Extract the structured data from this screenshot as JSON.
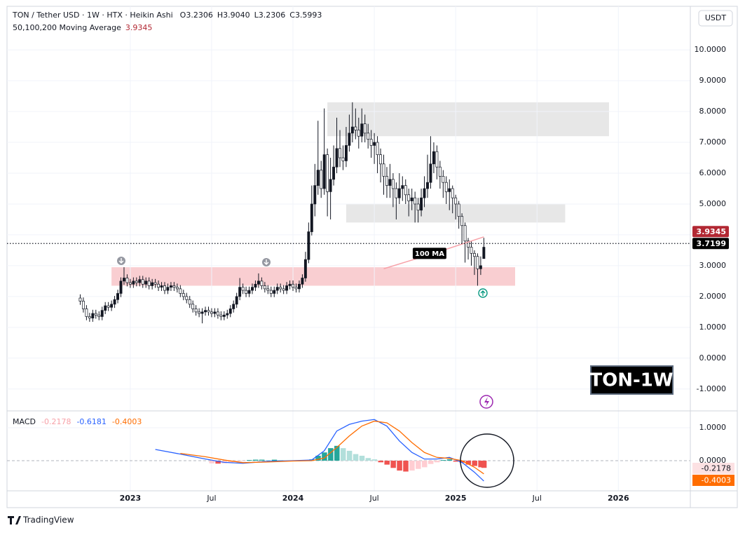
{
  "chart_data": [
    {
      "type": "candlestick",
      "title": "TON / Tether USD · 1W · HTX · Heikin Ashi",
      "ohlc_legend": [
        {
          "key": "O",
          "value": 3.2306
        },
        {
          "key": "H",
          "value": 3.904,
          "label": "3.9040"
        },
        {
          "key": "L",
          "value": 3.2306
        },
        {
          "key": "C",
          "value": 3.5993
        }
      ],
      "axis_unit": "USDT",
      "watermark": "TON-1W",
      "up_color": "#131722",
      "down_color": "#ffffff",
      "grid": true,
      "xlim": [
        -39.4,
        179
      ],
      "xticks": [
        {
          "value": 0,
          "label": "2023"
        },
        {
          "value": 26,
          "label": "Jul"
        },
        {
          "value": 52,
          "label": "2024"
        },
        {
          "value": 78,
          "label": "Jul"
        },
        {
          "value": 104,
          "label": "2025"
        },
        {
          "value": 130,
          "label": "Jul"
        },
        {
          "value": 156,
          "label": "2026"
        }
      ],
      "ylim": [
        -1.71,
        11.39
      ],
      "yticks": [
        {
          "value": 10,
          "label": "10.0000"
        },
        {
          "value": 9,
          "label": "9.0000"
        },
        {
          "value": 8,
          "label": "8.0000"
        },
        {
          "value": 7,
          "label": "7.0000"
        },
        {
          "value": 6,
          "label": "6.0000"
        },
        {
          "value": 5,
          "label": "5.0000"
        },
        {
          "value": 4,
          "label": "4.0000"
        },
        {
          "value": 3,
          "label": "3.0000"
        },
        {
          "value": 2,
          "label": "2.0000"
        },
        {
          "value": 1,
          "label": "1.0000"
        },
        {
          "value": 0,
          "label": "0.0000"
        },
        {
          "value": -1,
          "label": "-1.0000"
        }
      ],
      "x": [
        -16,
        -15,
        -14,
        -13,
        -12,
        -11,
        -10,
        -9,
        -8,
        -7,
        -6,
        -5,
        -4,
        -3,
        -2,
        -1,
        0,
        1,
        2,
        3,
        4,
        5,
        6,
        7,
        8,
        9,
        10,
        11,
        12,
        13,
        14,
        15,
        16,
        17,
        18,
        19,
        20,
        21,
        22,
        23,
        24,
        25,
        26,
        27,
        28,
        29,
        30,
        31,
        32,
        33,
        34,
        35,
        36,
        37,
        38,
        39,
        40,
        41,
        42,
        43,
        44,
        45,
        46,
        47,
        48,
        49,
        50,
        51,
        52,
        53,
        54,
        55,
        56,
        57,
        58,
        59,
        60,
        61,
        62,
        63,
        64,
        65,
        66,
        67,
        68,
        69,
        70,
        71,
        72,
        73,
        74,
        75,
        76,
        77,
        78,
        79,
        80,
        81,
        82,
        83,
        84,
        85,
        86,
        87,
        88,
        89,
        90,
        91,
        92,
        93,
        94,
        95,
        96,
        97,
        98,
        99,
        100,
        101,
        102,
        103,
        104,
        105,
        106,
        107,
        108,
        109,
        110,
        111,
        112,
        113
      ],
      "open": [
        1.95,
        1.85,
        1.6,
        1.35,
        1.3,
        1.45,
        1.4,
        1.35,
        1.55,
        1.7,
        1.65,
        1.75,
        1.9,
        2.1,
        2.5,
        2.6,
        2.45,
        2.4,
        2.5,
        2.45,
        2.55,
        2.4,
        2.5,
        2.35,
        2.45,
        2.4,
        2.3,
        2.35,
        2.2,
        2.3,
        2.35,
        2.3,
        2.25,
        2.1,
        2.0,
        1.9,
        1.75,
        1.6,
        1.5,
        1.45,
        1.5,
        1.55,
        1.5,
        1.45,
        1.5,
        1.4,
        1.35,
        1.4,
        1.45,
        1.6,
        1.75,
        2.0,
        2.3,
        2.2,
        2.1,
        2.2,
        2.3,
        2.4,
        2.5,
        2.35,
        2.25,
        2.2,
        2.1,
        2.2,
        2.3,
        2.25,
        2.2,
        2.35,
        2.4,
        2.3,
        2.25,
        2.4,
        2.6,
        3.2,
        4.1,
        5.0,
        5.6,
        6.1,
        5.5,
        6.6,
        5.4,
        5.8,
        6.2,
        6.8,
        6.5,
        6.4,
        6.9,
        7.3,
        7.5,
        7.4,
        7.2,
        7.6,
        7.3,
        7.1,
        6.9,
        7.0,
        6.6,
        6.3,
        5.9,
        5.6,
        5.8,
        5.5,
        5.2,
        5.5,
        5.6,
        5.3,
        5.1,
        5.2,
        5.0,
        4.8,
        5.2,
        5.5,
        5.7,
        6.3,
        6.7,
        6.2,
        5.9,
        5.7,
        5.4,
        5.5,
        5.2,
        5.0,
        4.6,
        4.3,
        3.8,
        3.6,
        3.4,
        3.3,
        2.9,
        3.2306
      ],
      "high": [
        2.07,
        1.97,
        1.72,
        1.47,
        1.57,
        1.57,
        1.52,
        1.67,
        1.82,
        1.82,
        1.87,
        2.02,
        2.22,
        2.62,
        2.95,
        2.72,
        2.57,
        2.62,
        2.62,
        2.67,
        2.67,
        2.62,
        2.62,
        2.57,
        2.57,
        2.52,
        2.47,
        2.47,
        2.42,
        2.47,
        2.47,
        2.42,
        2.37,
        2.22,
        2.12,
        2.02,
        1.87,
        1.72,
        1.62,
        1.62,
        1.67,
        1.67,
        1.62,
        1.62,
        1.62,
        1.52,
        1.52,
        1.57,
        1.72,
        1.87,
        2.12,
        2.6,
        2.42,
        2.32,
        2.32,
        2.42,
        2.52,
        2.75,
        2.62,
        2.47,
        2.37,
        2.32,
        2.32,
        2.42,
        2.42,
        2.37,
        2.47,
        2.52,
        2.52,
        2.42,
        2.52,
        2.72,
        3.45,
        4.4,
        5.6,
        6.3,
        7.7,
        6.4,
        8.1,
        6.8,
        6.5,
        6.9,
        7.8,
        7.4,
        6.9,
        7.5,
        7.9,
        8.3,
        8.1,
        7.8,
        8.1,
        7.9,
        7.6,
        7.4,
        7.3,
        7.2,
        6.8,
        6.6,
        6.2,
        6.3,
        6.0,
        5.7,
        6.0,
        5.9,
        5.8,
        5.5,
        5.5,
        5.4,
        5.2,
        5.5,
        5.9,
        6.6,
        7.2,
        7.0,
        6.9,
        6.4,
        6.1,
        5.9,
        5.8,
        5.6,
        5.3,
        5.1,
        4.7,
        4.4,
        3.9,
        3.8,
        3.5,
        3.4,
        3.3,
        3.904
      ],
      "low": [
        1.73,
        1.48,
        1.23,
        1.18,
        1.18,
        1.28,
        1.23,
        1.23,
        1.43,
        1.53,
        1.53,
        1.63,
        1.78,
        1.98,
        2.38,
        2.33,
        2.28,
        2.28,
        2.33,
        2.33,
        2.28,
        2.28,
        2.23,
        2.23,
        2.28,
        2.18,
        2.18,
        2.08,
        2.08,
        2.18,
        2.18,
        2.13,
        1.98,
        1.88,
        1.78,
        1.63,
        1.48,
        1.38,
        1.33,
        1.13,
        1.38,
        1.38,
        1.33,
        1.33,
        1.28,
        1.23,
        1.23,
        1.28,
        1.33,
        1.48,
        1.63,
        1.88,
        2.08,
        1.98,
        1.98,
        2.08,
        2.18,
        2.28,
        2.23,
        2.13,
        2.08,
        1.98,
        1.98,
        2.08,
        2.13,
        2.08,
        2.08,
        2.23,
        2.18,
        2.13,
        2.13,
        2.28,
        2.48,
        3.08,
        3.98,
        4.6,
        5.3,
        5.2,
        5.3,
        4.6,
        4.5,
        5.6,
        6.0,
        6.2,
        6.1,
        6.2,
        6.7,
        7.0,
        7.1,
        6.8,
        7.0,
        7.0,
        6.8,
        6.5,
        6.3,
        6.0,
        5.7,
        5.3,
        5.2,
        5.2,
        4.9,
        4.5,
        5.0,
        5.1,
        5.0,
        4.6,
        4.8,
        4.4,
        4.4,
        4.6,
        4.9,
        5.2,
        5.5,
        6.0,
        5.8,
        5.5,
        5.2,
        5.0,
        4.8,
        4.7,
        4.5,
        4.2,
        3.7,
        3.1,
        3.2,
        3.0,
        2.7,
        2.35,
        2.7,
        3.2306
      ],
      "close": [
        1.85,
        1.6,
        1.35,
        1.3,
        1.45,
        1.4,
        1.35,
        1.55,
        1.7,
        1.65,
        1.75,
        1.9,
        2.1,
        2.5,
        2.6,
        2.45,
        2.4,
        2.5,
        2.45,
        2.55,
        2.4,
        2.5,
        2.35,
        2.45,
        2.4,
        2.3,
        2.35,
        2.2,
        2.3,
        2.35,
        2.3,
        2.25,
        2.1,
        2.0,
        1.9,
        1.75,
        1.6,
        1.5,
        1.45,
        1.5,
        1.55,
        1.5,
        1.45,
        1.5,
        1.4,
        1.35,
        1.4,
        1.45,
        1.6,
        1.75,
        2.0,
        2.3,
        2.2,
        2.1,
        2.2,
        2.3,
        2.4,
        2.5,
        2.35,
        2.25,
        2.2,
        2.1,
        2.2,
        2.3,
        2.25,
        2.2,
        2.35,
        2.4,
        2.3,
        2.25,
        2.4,
        2.6,
        3.2,
        4.1,
        5.0,
        5.6,
        6.1,
        5.5,
        6.6,
        5.4,
        5.8,
        6.2,
        6.8,
        6.5,
        6.4,
        6.9,
        7.3,
        7.5,
        7.4,
        7.2,
        7.6,
        7.3,
        7.1,
        6.9,
        7.0,
        6.6,
        6.3,
        5.9,
        5.6,
        5.8,
        5.5,
        5.2,
        5.5,
        5.6,
        5.3,
        5.1,
        5.2,
        5.0,
        4.8,
        5.2,
        5.5,
        5.7,
        6.3,
        6.7,
        6.2,
        5.9,
        5.7,
        5.4,
        5.5,
        5.2,
        5.0,
        4.6,
        4.3,
        3.8,
        3.6,
        3.4,
        3.3,
        2.9,
        3.0,
        3.5993
      ],
      "moving_average": {
        "name": "50,100,200 Moving Average",
        "label": "100 MA",
        "color": "#f7a1a8",
        "x": [
          81,
          97,
          113
        ],
        "values": [
          2.9,
          3.4,
          3.9345
        ]
      },
      "last_price": 3.7199,
      "zones": [
        {
          "x": [
            63,
            153
          ],
          "y": [
            7.2,
            8.3
          ],
          "color": "#e3e3e3"
        },
        {
          "x": [
            69,
            139
          ],
          "y": [
            4.4,
            5.0
          ],
          "color": "#e3e3e3"
        },
        {
          "x": [
            -6,
            123
          ],
          "y": [
            2.35,
            2.95
          ],
          "color": "#f8c5c9"
        }
      ]
    },
    {
      "type": "macd",
      "title": "MACD",
      "grid": true,
      "xlim": [
        -39.4,
        179
      ],
      "ylim": [
        -0.915,
        1.468
      ],
      "yticks": [
        {
          "value": 1,
          "label": "1.0000"
        },
        {
          "value": 0,
          "label": "0.0000"
        }
      ],
      "hist_colors": [
        "#26a69a",
        "#b2dfdb",
        "#ef5350",
        "#ffcdd2"
      ],
      "series": [
        {
          "kind": "histogram",
          "color": "#f7a1a8",
          "x": [
            26,
            28,
            30,
            32,
            34,
            36,
            38,
            40,
            42,
            44,
            46,
            48,
            50,
            52,
            54,
            56,
            58,
            60,
            62,
            64,
            66,
            68,
            70,
            72,
            74,
            76,
            78,
            80,
            82,
            84,
            86,
            88,
            90,
            92,
            94,
            96,
            98,
            100,
            102,
            104,
            106,
            108,
            110,
            112,
            113
          ],
          "values": [
            -0.08,
            -0.09,
            -0.08,
            -0.06,
            -0.04,
            -0.02,
            0.02,
            0.03,
            0.03,
            0.02,
            0.03,
            0.02,
            0.01,
            0.01,
            0.01,
            0.02,
            0.04,
            0.15,
            0.25,
            0.38,
            0.45,
            0.38,
            0.3,
            0.2,
            0.15,
            0.08,
            0.04,
            -0.05,
            -0.12,
            -0.22,
            -0.3,
            -0.33,
            -0.3,
            -0.25,
            -0.2,
            -0.1,
            -0.05,
            0.02,
            0.04,
            -0.03,
            -0.06,
            -0.12,
            -0.16,
            -0.2,
            -0.2178
          ]
        },
        {
          "kind": "line",
          "color": "#2962ff",
          "x": [
            8,
            16,
            24,
            30,
            36,
            44,
            52,
            58,
            62,
            66,
            70,
            74,
            78,
            82,
            86,
            90,
            94,
            98,
            102,
            106,
            110,
            113
          ],
          "values": [
            0.34,
            0.2,
            0.05,
            -0.05,
            -0.08,
            -0.02,
            0.0,
            0.02,
            0.3,
            0.9,
            1.1,
            1.2,
            1.25,
            1.05,
            0.6,
            0.25,
            0.05,
            0.05,
            0.1,
            -0.05,
            -0.35,
            -0.6181
          ]
        },
        {
          "kind": "line",
          "color": "#ff6d00",
          "x": [
            16,
            24,
            30,
            36,
            44,
            52,
            58,
            62,
            66,
            70,
            74,
            78,
            82,
            86,
            90,
            94,
            98,
            102,
            106,
            110,
            113
          ],
          "values": [
            0.22,
            0.12,
            0.02,
            -0.06,
            -0.04,
            -0.01,
            0.0,
            0.08,
            0.4,
            0.75,
            1.05,
            1.2,
            1.15,
            0.9,
            0.55,
            0.25,
            0.1,
            0.07,
            0.0,
            -0.2,
            -0.4003
          ]
        }
      ]
    }
  ],
  "footer": {
    "brand": "TradingView"
  }
}
